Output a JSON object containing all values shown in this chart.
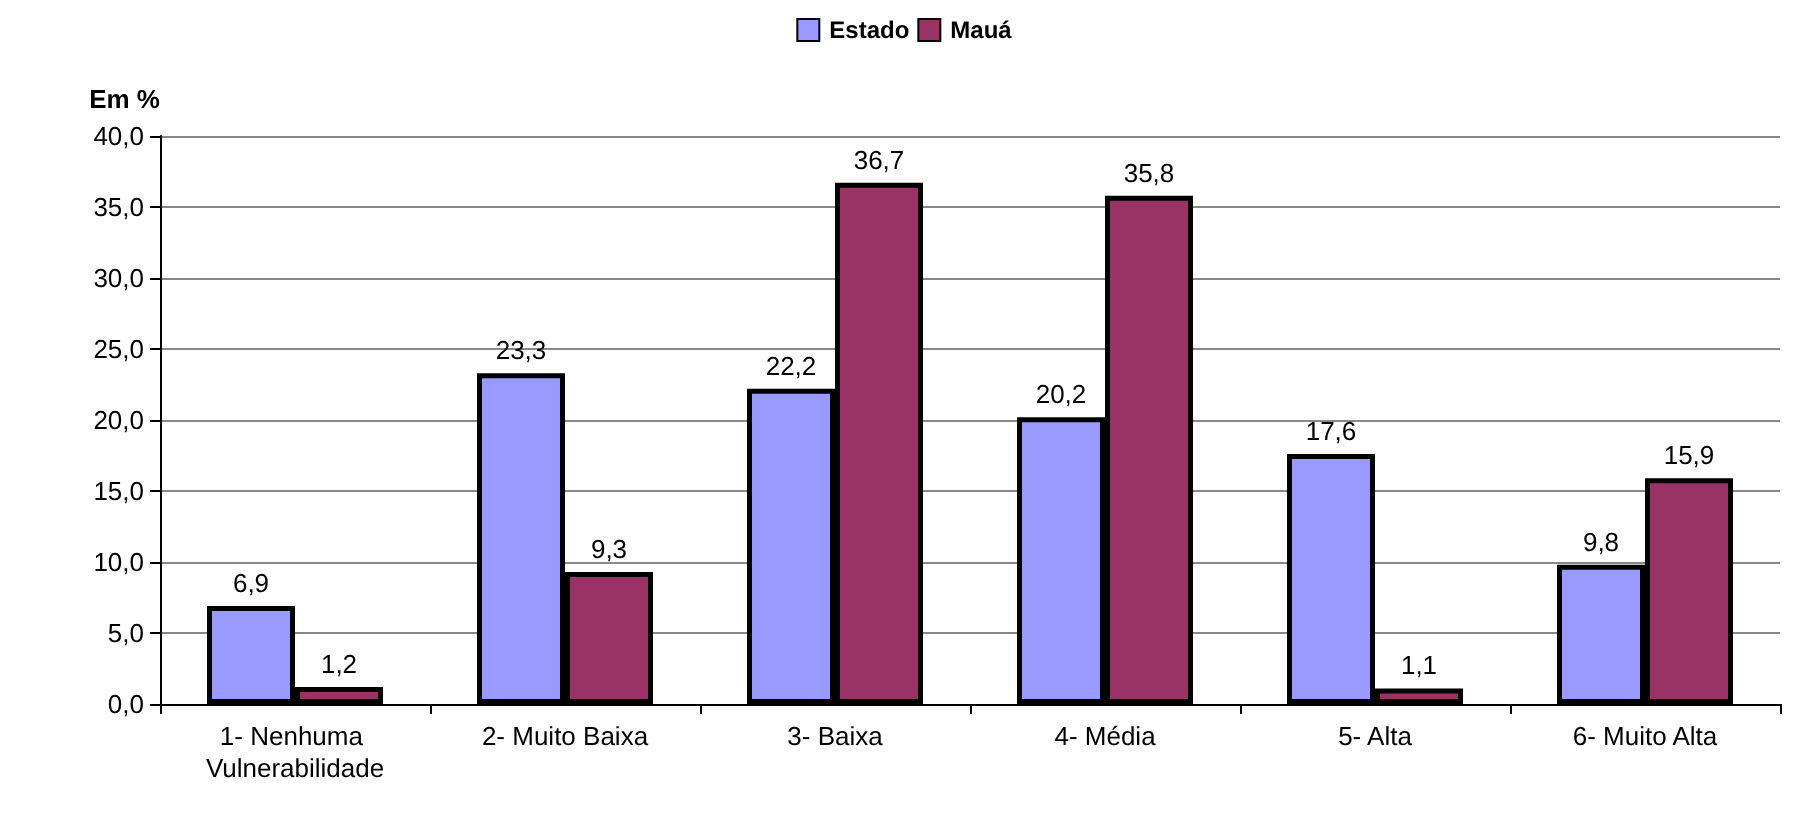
{
  "chart_data": {
    "type": "bar",
    "ylabel": "Em %",
    "categories": [
      "1- Nenhuma Vulnerabilidade",
      "2- Muito Baixa",
      "3- Baixa",
      "4- Média",
      "5- Alta",
      "6- Muito Alta"
    ],
    "series": [
      {
        "name": "Estado",
        "color": "#9999ff",
        "values": [
          6.9,
          23.3,
          22.2,
          20.2,
          17.6,
          9.8
        ],
        "value_labels": [
          "6,9",
          "23,3",
          "22,2",
          "20,2",
          "17,6",
          "9,8"
        ]
      },
      {
        "name": "Mauá",
        "color": "#993366",
        "values": [
          1.2,
          9.3,
          36.7,
          35.8,
          1.1,
          15.9
        ],
        "value_labels": [
          "1,2",
          "9,3",
          "36,7",
          "35,8",
          "1,1",
          "15,9"
        ]
      }
    ],
    "ylim": [
      0,
      40
    ],
    "yticks": [
      {
        "value": 0,
        "label": "0,0"
      },
      {
        "value": 5,
        "label": "5,0"
      },
      {
        "value": 10,
        "label": "10,0"
      },
      {
        "value": 15,
        "label": "15,0"
      },
      {
        "value": 20,
        "label": "20,0"
      },
      {
        "value": 25,
        "label": "25,0"
      },
      {
        "value": 30,
        "label": "30,0"
      },
      {
        "value": 35,
        "label": "35,0"
      },
      {
        "value": 40,
        "label": "40,0"
      }
    ],
    "grid": "y",
    "legend": "top"
  }
}
